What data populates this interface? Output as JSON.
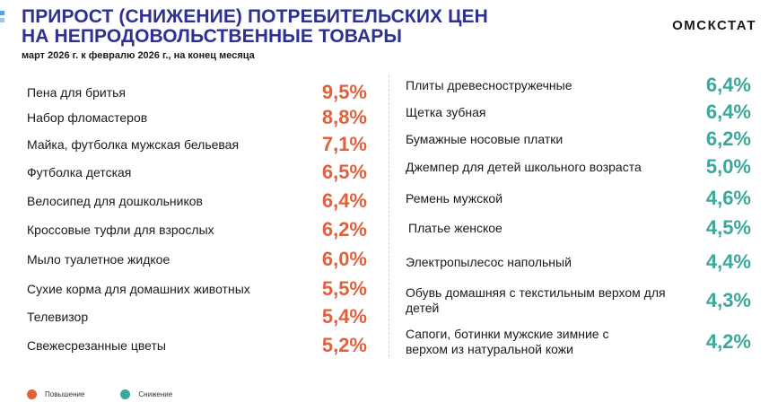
{
  "header": {
    "title_line1": "ПРИРОСТ (СНИЖЕНИЕ) ПОТРЕБИТЕЛЬСКИХ ЦЕН",
    "title_line2": "НА НЕПРОДОВОЛЬСТВЕННЫЕ ТОВАРЫ",
    "subtitle": "март 2026 г. к февралю 2026 г., на конец месяца",
    "brand": "ОМСКСТАТ"
  },
  "colors": {
    "increase": "#e0623c",
    "decrease": "#3aa89a",
    "title": "#2e3192"
  },
  "increase": [
    {
      "name": "Пена для бритья",
      "value": "9,5%"
    },
    {
      "name": "Набор фломастеров",
      "value": "8,8%"
    },
    {
      "name": "Майка, футболка мужская бельевая",
      "value": "7,1%"
    },
    {
      "name": "Футболка детская",
      "value": "6,5%"
    },
    {
      "name": "Велосипед для дошкольников",
      "value": "6,4%"
    },
    {
      "name": "Кроссовые туфли для взрослых",
      "value": "6,2%"
    },
    {
      "name": "Мыло туалетное жидкое",
      "value": "6,0%"
    },
    {
      "name": "Сухие корма для домашних животных",
      "value": "5,5%"
    },
    {
      "name": "Телевизор",
      "value": "5,4%"
    },
    {
      "name": "Свежесрезанные цветы",
      "value": "5,2%"
    }
  ],
  "decrease": [
    {
      "name": "Плиты древесностружечные",
      "value": "6,4%"
    },
    {
      "name": "Щетка зубная",
      "value": "6,4%"
    },
    {
      "name": "Бумажные носовые платки",
      "value": "6,2%"
    },
    {
      "name": "Джемпер для детей школьного возраста",
      "value": "5,0%"
    },
    {
      "name": "Ремень мужской",
      "value": "4,6%"
    },
    {
      "name": "Платье женское",
      "value": "4,5%"
    },
    {
      "name": "Электропылесос напольный",
      "value": "4,4%"
    },
    {
      "name": "Обувь домашняя с текстильным верхом для детей",
      "value": "4,3%"
    },
    {
      "name": "Сапоги, ботинки мужские зимние с верхом из натуральной кожи",
      "value": "4,2%"
    }
  ],
  "legend": {
    "increase_label": "Повышение",
    "decrease_label": "Снижение"
  }
}
